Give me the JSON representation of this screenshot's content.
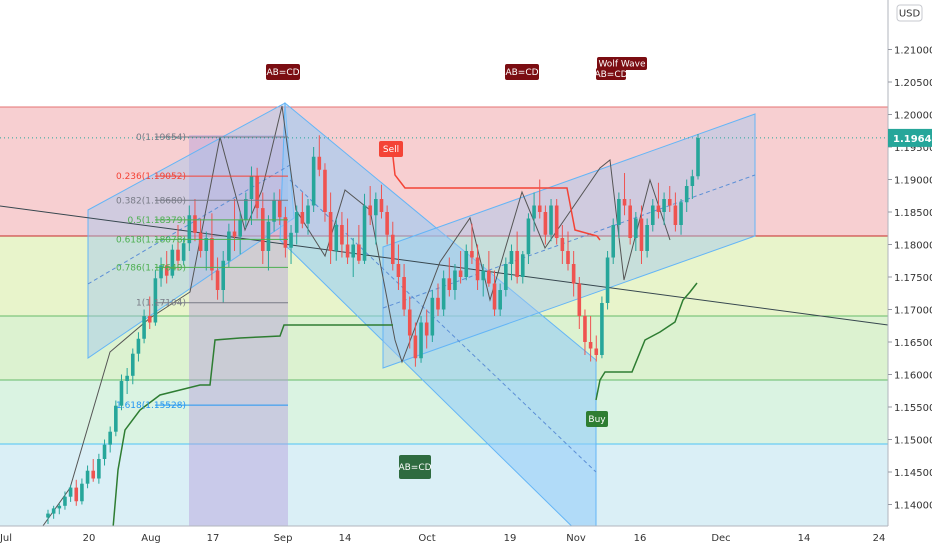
{
  "chart_data": {
    "type": "candlestick",
    "currency_button": "USD",
    "current_price": "1.19640",
    "y_ticks": [
      "1.21000",
      "1.20500",
      "1.20000",
      "1.19500",
      "1.19000",
      "1.18500",
      "1.18000",
      "1.17500",
      "1.17000",
      "1.16500",
      "1.16000",
      "1.15500",
      "1.15000",
      "1.14500",
      "1.14000"
    ],
    "x_ticks": [
      "Jul",
      "20",
      "Aug",
      "17",
      "Sep",
      "14",
      "Oct",
      "19",
      "Nov",
      "16",
      "Dec",
      "14",
      "24"
    ],
    "fib_levels": [
      {
        "label": "0(1.19654)",
        "value": 1.19654
      },
      {
        "label": "0.236(1.19052)",
        "value": 1.19052
      },
      {
        "label": "0.382(1.18680)",
        "value": 1.1868
      },
      {
        "label": "0.5(1.18379)",
        "value": 1.18379
      },
      {
        "label": "0.618(1.18078)",
        "value": 1.18078
      },
      {
        "label": "0.786(1.17649)",
        "value": 1.17649
      },
      {
        "label": "1(1.17104)",
        "value": 1.17104
      },
      {
        "label": "1.618(1.15528)",
        "value": 1.15528
      }
    ],
    "annotations": [
      {
        "label": "AB=CD",
        "kind": "pattern"
      },
      {
        "label": "AB=CD",
        "kind": "pattern"
      },
      {
        "label": "Wolf Wave",
        "kind": "pattern"
      },
      {
        "label": "AB=CD",
        "kind": "pattern"
      },
      {
        "label": "Sell",
        "kind": "signal"
      },
      {
        "label": "Buy",
        "kind": "signal"
      },
      {
        "label": "AB=CD",
        "kind": "pattern"
      }
    ],
    "colors": {
      "up": "#26a69a",
      "down": "#ef5350",
      "sell_line": "#f44336",
      "buy_line": "#4caf50",
      "channel": "#2196f3"
    }
  }
}
